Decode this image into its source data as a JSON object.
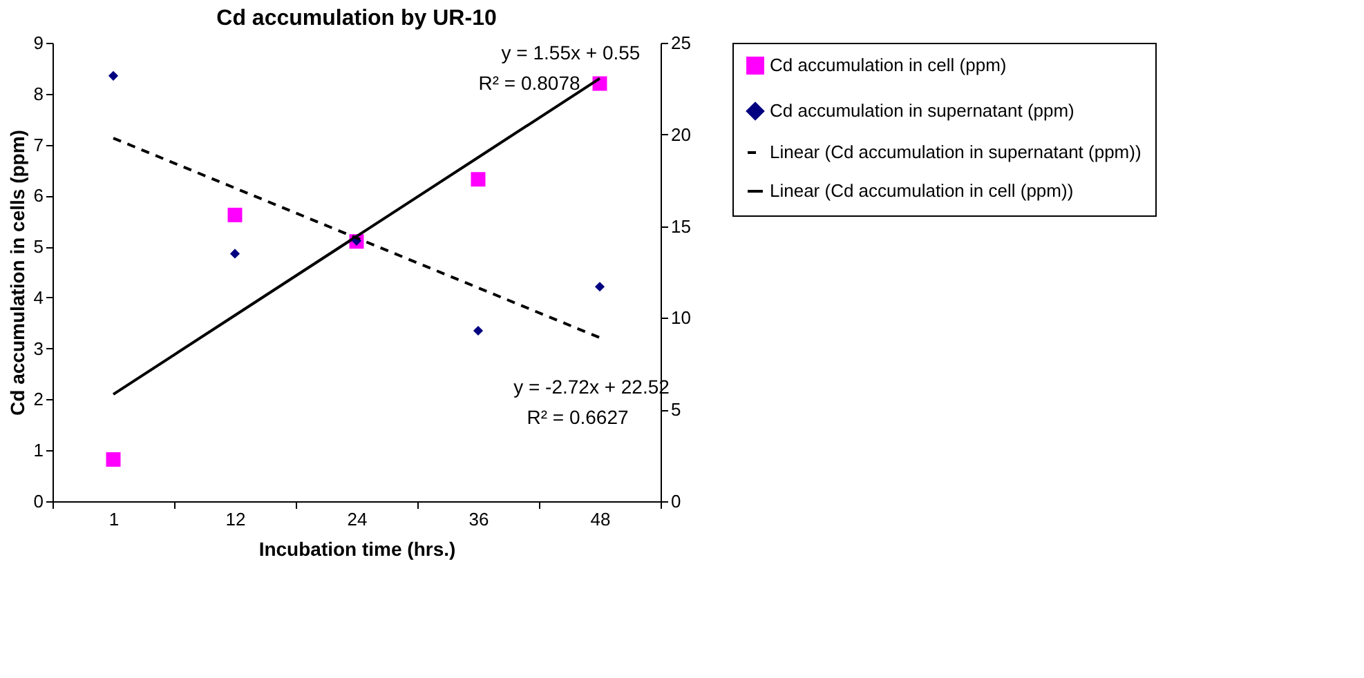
{
  "chart_data": {
    "type": "scatter",
    "title": "Cd accumulation by UR-10",
    "xlabel": "Incubation time (hrs.)",
    "ylabel": "Cd accumulation in cells (ppm)",
    "categories": [
      "1",
      "12",
      "24",
      "36",
      "48"
    ],
    "ylim": [
      0,
      9
    ],
    "yticks": [
      0,
      1,
      2,
      3,
      4,
      5,
      6,
      7,
      8,
      9
    ],
    "y2lim": [
      0,
      25
    ],
    "y2ticks": [
      0,
      5,
      10,
      15,
      20,
      25
    ],
    "grid": false,
    "legend": "right",
    "annotations": [
      "y = 1.55x + 0.55",
      "R² = 0.8078",
      "y = -2.72x + 22.52",
      "R² = 0.6627"
    ],
    "series": [
      {
        "name": "Cd accumulation in cell (ppm)",
        "marker": "square",
        "color": "#ff00ff",
        "values": [
          0.82,
          5.62,
          5.1,
          6.32,
          8.2
        ]
      },
      {
        "name": "Cd accumulation in supernatant (ppm)",
        "marker": "diamond",
        "color": "#000080",
        "axis": "y2",
        "values": [
          23.2,
          13.5,
          14.2,
          9.3,
          11.7
        ]
      },
      {
        "name": "Linear (Cd accumulation in supernatant (ppm))",
        "type": "line",
        "line_style": "dashed",
        "color": "#000000",
        "axis": "y2",
        "x": [
          "1",
          "12",
          "24",
          "36",
          "48"
        ],
        "values": [
          19.8,
          17.08,
          14.36,
          11.64,
          8.92
        ]
      },
      {
        "name": "Linear (Cd accumulation in cell (ppm))",
        "type": "line",
        "line_style": "solid",
        "color": "#000000",
        "x": [
          "1",
          "12",
          "24",
          "36",
          "48"
        ],
        "values": [
          2.1,
          3.65,
          5.2,
          6.75,
          8.3
        ]
      }
    ]
  }
}
